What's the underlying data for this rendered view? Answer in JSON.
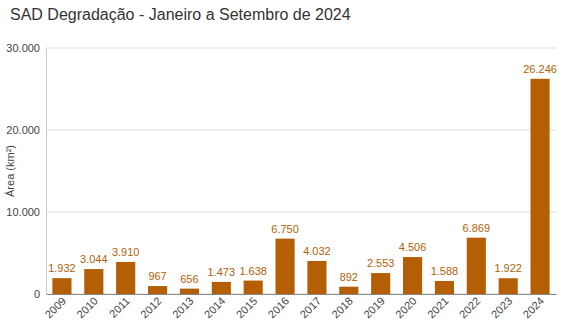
{
  "chart_data": {
    "type": "bar",
    "title": "SAD Degradação - Janeiro a Setembro de 2024",
    "y_label": "Área (km²)",
    "categories": [
      "2009",
      "2010",
      "2011",
      "2012",
      "2013",
      "2014",
      "2015",
      "2016",
      "2017",
      "2018",
      "2019",
      "2020",
      "2021",
      "2022",
      "2023",
      "2024"
    ],
    "values": [
      1932,
      3044,
      3910,
      967,
      656,
      1473,
      1638,
      6750,
      4032,
      892,
      2553,
      4506,
      1588,
      6869,
      1922,
      26246
    ],
    "value_labels": [
      "1.932",
      "3.044",
      "3.910",
      "967",
      "656",
      "1.473",
      "1.638",
      "6.750",
      "4.032",
      "892",
      "2.553",
      "4.506",
      "1.588",
      "6.869",
      "1.922",
      "26.246"
    ],
    "color": "#b45f06",
    "ylim": [
      0,
      30000
    ],
    "yticks": [
      0,
      {
        "value": 10000,
        "label": "10.000"
      },
      {
        "value": 20000,
        "label": "20.000"
      },
      {
        "value": 30000,
        "label": "30.000"
      }
    ],
    "grid": true,
    "data_labels": true
  }
}
